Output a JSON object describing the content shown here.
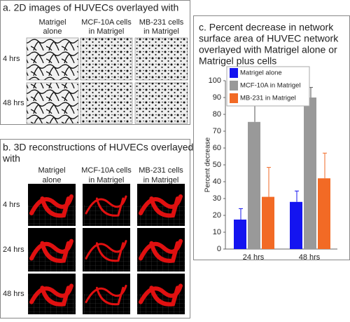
{
  "panel_a": {
    "title": "a. 2D images of HUVECs overlayed with",
    "columns": [
      [
        "Matrigel",
        "alone"
      ],
      [
        "MCF-10A cells",
        "in Matrigel"
      ],
      [
        "MB-231 cells",
        "in Matrigel"
      ]
    ],
    "rows": [
      "4 hrs",
      "48 hrs"
    ]
  },
  "panel_b": {
    "title": [
      "b. 3D reconstructions of HUVECs overlayed",
      "with"
    ],
    "columns": [
      [
        "Matrigel",
        "alone"
      ],
      [
        "MCF-10A cells",
        "in Matrigel"
      ],
      [
        "MB-231 cells",
        "in Matrigel"
      ]
    ],
    "rows": [
      "4 hrs",
      "24 hrs",
      "48 hrs"
    ]
  },
  "chart_data": {
    "type": "bar",
    "title": [
      "c. Percent decrease in network",
      "surface area of HUVEC network",
      "overlayed with Matrigel alone or",
      "Matrigel plus cells"
    ],
    "y_label": "Percent decrease",
    "categories": [
      "24 hrs",
      "48 hrs"
    ],
    "series": [
      {
        "name": "Matrigel alone",
        "color": "#1414f0",
        "values": [
          17.5,
          28
        ],
        "errors": [
          6.5,
          6.5
        ]
      },
      {
        "name": "MCF-10A in Matrigel",
        "color": "#999999",
        "values": [
          75.5,
          90
        ],
        "errors": [
          11,
          6
        ]
      },
      {
        "name": "MB-231 in Matrigel",
        "color": "#f26a25",
        "values": [
          31,
          42
        ],
        "errors": [
          17.5,
          15
        ]
      }
    ],
    "ylim": [
      0,
      100
    ],
    "yticks": [
      0,
      10,
      20,
      30,
      40,
      50,
      60,
      70,
      80,
      90,
      100
    ],
    "legend": "upper left"
  }
}
